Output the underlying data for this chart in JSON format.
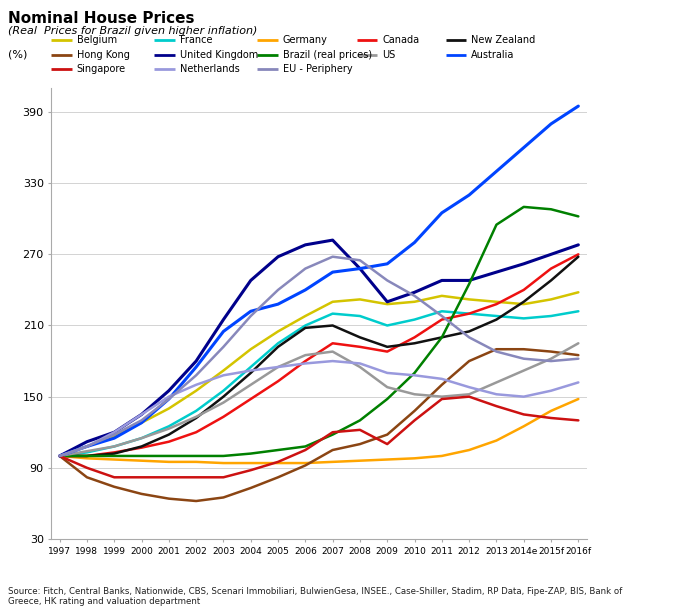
{
  "title": "Nominal House Prices",
  "subtitle": "(Real  Prices for Brazil given higher inflation)",
  "ylim": [
    30,
    410
  ],
  "yticks": [
    30,
    90,
    150,
    210,
    270,
    330,
    390
  ],
  "source": "Source: Fitch, Central Banks, Nationwide, CBS, Scenari Immobiliari, BulwienGesa, INSEE., Case-Shiller, Stadim, RP Data, Fipe-ZAP, BIS, Bank of\nGreece, HK rating and valuation department",
  "xtick_labels": [
    "1997",
    "1998",
    "1999",
    "2000",
    "2001",
    "2002",
    "2003",
    "2004",
    "2005",
    "2006",
    "2007",
    "2008",
    "2009",
    "2010",
    "2011",
    "2012",
    "2013",
    "2014e",
    "2015f",
    "2016f"
  ],
  "legend_rows": [
    [
      "Belgium",
      "France",
      "Germany",
      "Canada",
      "New Zealand"
    ],
    [
      "Hong Kong",
      "United Kingdom",
      "Brazil (real prices)",
      "US",
      "Australia"
    ],
    [
      "Singapore",
      "Netherlands",
      "EU - Periphery"
    ]
  ],
  "series": {
    "Belgium": {
      "color": "#D4C400",
      "lw": 1.8,
      "values": [
        100,
        108,
        117,
        128,
        140,
        155,
        172,
        190,
        205,
        218,
        230,
        232,
        228,
        230,
        235,
        232,
        230,
        228,
        232,
        238
      ]
    },
    "France": {
      "color": "#00CCCC",
      "lw": 1.8,
      "values": [
        100,
        103,
        108,
        115,
        125,
        138,
        155,
        175,
        195,
        210,
        220,
        218,
        210,
        215,
        222,
        220,
        218,
        216,
        218,
        222
      ]
    },
    "Germany": {
      "color": "#FFA500",
      "lw": 1.8,
      "values": [
        100,
        98,
        97,
        96,
        95,
        95,
        94,
        94,
        94,
        94,
        95,
        96,
        97,
        98,
        100,
        105,
        113,
        125,
        138,
        148
      ]
    },
    "Canada": {
      "color": "#EE1111",
      "lw": 1.8,
      "values": [
        100,
        100,
        103,
        107,
        112,
        120,
        133,
        148,
        163,
        180,
        195,
        192,
        188,
        200,
        215,
        220,
        228,
        240,
        258,
        270
      ]
    },
    "New Zealand": {
      "color": "#111111",
      "lw": 1.8,
      "values": [
        100,
        100,
        102,
        108,
        118,
        132,
        150,
        170,
        192,
        208,
        210,
        200,
        192,
        195,
        200,
        205,
        215,
        230,
        248,
        268
      ]
    },
    "Hong Kong": {
      "color": "#8B4513",
      "lw": 1.8,
      "values": [
        100,
        82,
        74,
        68,
        64,
        62,
        65,
        73,
        82,
        92,
        105,
        110,
        118,
        138,
        160,
        180,
        190,
        190,
        188,
        185
      ]
    },
    "United Kingdom": {
      "color": "#00008B",
      "lw": 2.2,
      "values": [
        100,
        112,
        120,
        135,
        155,
        180,
        215,
        248,
        268,
        278,
        282,
        258,
        230,
        238,
        248,
        248,
        255,
        262,
        270,
        278
      ]
    },
    "Brazil (real prices)": {
      "color": "#008000",
      "lw": 1.8,
      "values": [
        100,
        100,
        100,
        100,
        100,
        100,
        100,
        102,
        105,
        108,
        118,
        130,
        148,
        170,
        200,
        245,
        295,
        310,
        308,
        302
      ]
    },
    "US": {
      "color": "#999999",
      "lw": 1.8,
      "values": [
        100,
        104,
        108,
        115,
        123,
        133,
        145,
        160,
        175,
        185,
        188,
        175,
        158,
        152,
        150,
        152,
        162,
        172,
        182,
        195
      ]
    },
    "Australia": {
      "color": "#0044FF",
      "lw": 2.2,
      "values": [
        100,
        108,
        115,
        128,
        148,
        175,
        205,
        222,
        228,
        240,
        255,
        258,
        262,
        280,
        305,
        320,
        340,
        360,
        380,
        395
      ]
    },
    "Singapore": {
      "color": "#CC1111",
      "lw": 1.8,
      "values": [
        100,
        90,
        82,
        82,
        82,
        82,
        82,
        88,
        95,
        105,
        120,
        122,
        110,
        130,
        148,
        150,
        142,
        135,
        132,
        130
      ]
    },
    "Netherlands": {
      "color": "#9999DD",
      "lw": 1.8,
      "values": [
        100,
        108,
        120,
        135,
        150,
        160,
        168,
        172,
        175,
        178,
        180,
        178,
        170,
        168,
        165,
        158,
        152,
        150,
        155,
        162
      ]
    },
    "EU - Periphery": {
      "color": "#8888BB",
      "lw": 1.8,
      "values": [
        100,
        108,
        118,
        130,
        148,
        168,
        192,
        218,
        240,
        258,
        268,
        265,
        248,
        235,
        218,
        200,
        188,
        182,
        180,
        182
      ]
    }
  }
}
